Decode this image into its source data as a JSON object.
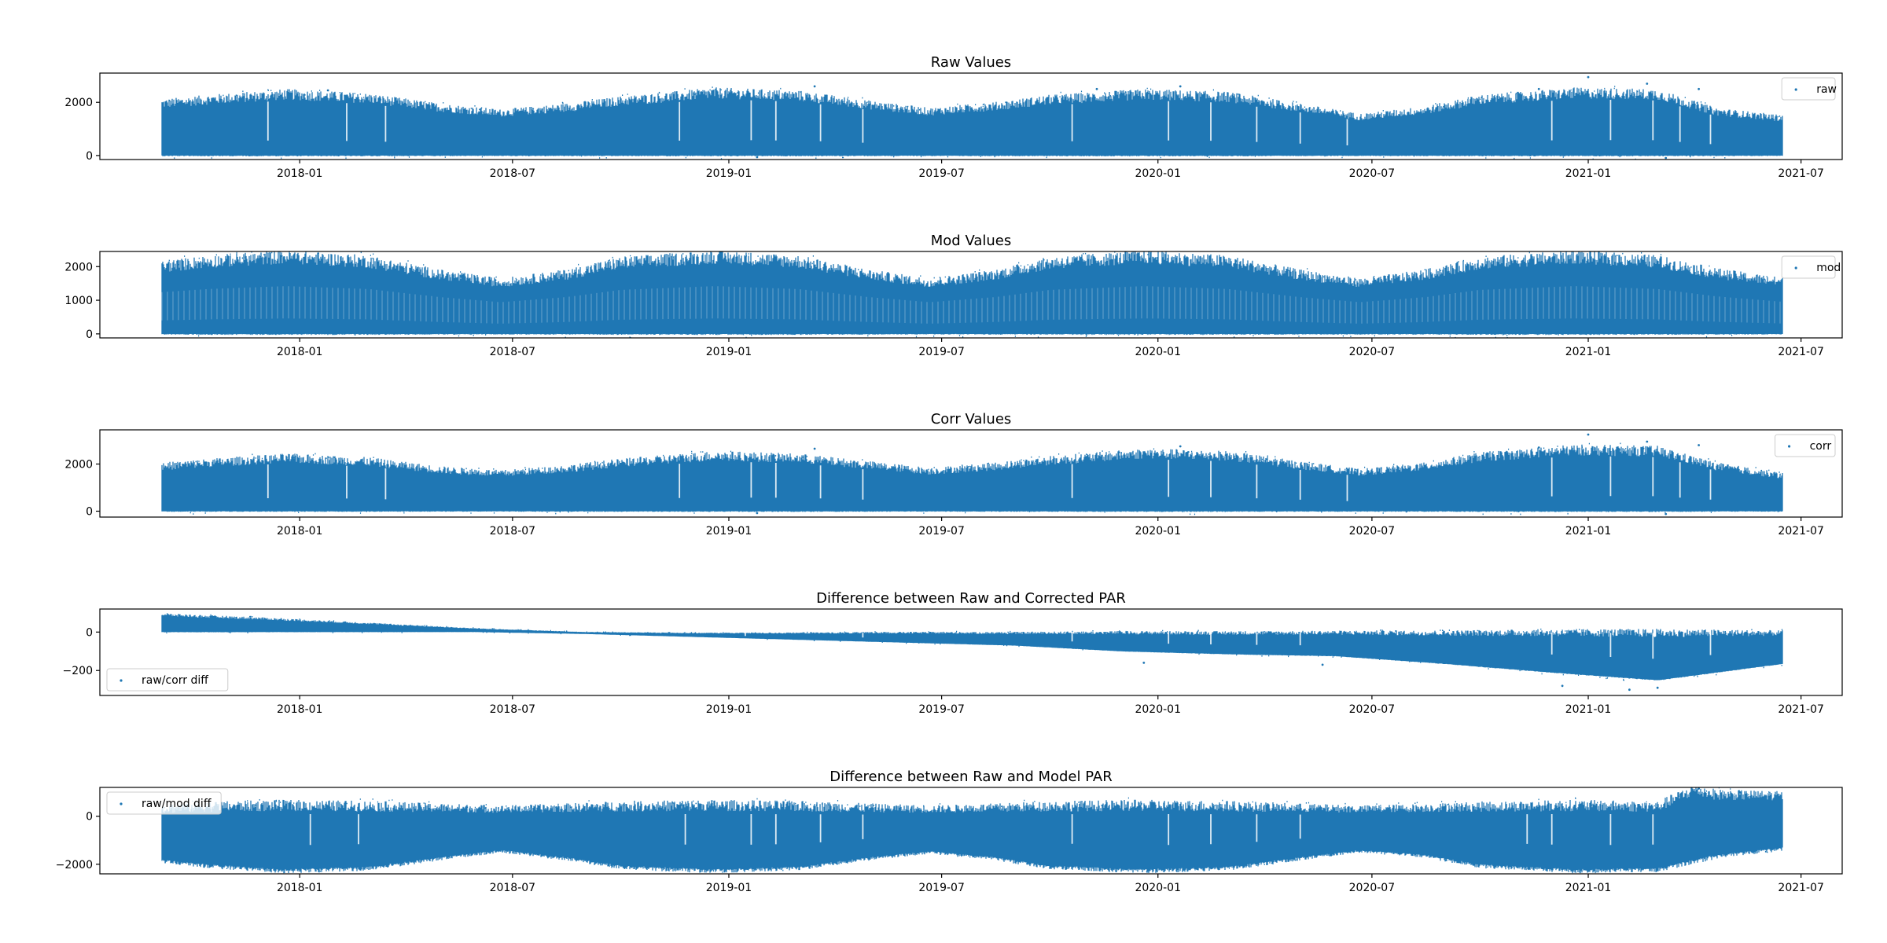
{
  "figure": {
    "background": "#ffffff",
    "series_color": "#1f77b4"
  },
  "chart_data": [
    {
      "type": "scatter",
      "title": "Raw Values",
      "legend": {
        "label": "raw",
        "location": "upper right"
      },
      "x_ticks": [
        "2018-01",
        "2018-07",
        "2019-01",
        "2019-07",
        "2020-01",
        "2020-07",
        "2021-01",
        "2021-07"
      ],
      "xlim": [
        "2017-07-15",
        "2021-08-05"
      ],
      "y_ticks": [
        0,
        2000
      ],
      "ylim": [
        -150,
        3100
      ],
      "x_range": [
        "2017-09-06",
        "2021-06-15"
      ],
      "envelope": {
        "dates": [
          "2017-09-06",
          "2017-10-15",
          "2017-12-21",
          "2018-03-01",
          "2018-05-01",
          "2018-06-21",
          "2018-08-15",
          "2018-10-01",
          "2018-12-21",
          "2019-03-01",
          "2019-05-01",
          "2019-06-21",
          "2019-08-15",
          "2019-10-01",
          "2019-12-21",
          "2020-03-01",
          "2020-05-01",
          "2020-06-21",
          "2020-08-15",
          "2020-10-01",
          "2020-12-21",
          "2021-03-01",
          "2021-04-20",
          "2021-06-15"
        ],
        "upper": [
          1950,
          2100,
          2300,
          2150,
          1800,
          1600,
          1800,
          2050,
          2350,
          2250,
          1900,
          1650,
          1850,
          2100,
          2300,
          2200,
          1800,
          1450,
          1700,
          2100,
          2350,
          2300,
          1650,
          1400
        ],
        "lower": [
          0,
          0,
          0,
          0,
          0,
          0,
          0,
          0,
          0,
          0,
          0,
          0,
          0,
          0,
          0,
          0,
          0,
          0,
          0,
          0,
          0,
          0,
          0,
          0
        ]
      },
      "outliers_high": [
        [
          "2021-01-01",
          2950
        ],
        [
          "2021-02-20",
          2700
        ],
        [
          "2019-03-15",
          2600
        ],
        [
          "2018-01-25",
          2450
        ],
        [
          "2019-11-10",
          2500
        ],
        [
          "2020-01-20",
          2600
        ],
        [
          "2020-11-20",
          2500
        ],
        [
          "2021-04-05",
          2500
        ]
      ],
      "outliers_low": [
        [
          "2021-03-08",
          -90
        ],
        [
          "2019-01-25",
          -60
        ]
      ],
      "dropouts": [
        "2017-12-05",
        "2018-02-10",
        "2018-03-15",
        "2018-11-20",
        "2019-01-20",
        "2019-02-10",
        "2019-03-20",
        "2019-04-25",
        "2019-10-20",
        "2020-01-10",
        "2020-02-15",
        "2020-03-25",
        "2020-05-01",
        "2020-06-10",
        "2020-12-01",
        "2021-01-20",
        "2021-02-25",
        "2021-03-20",
        "2021-04-15"
      ]
    },
    {
      "type": "scatter",
      "title": "Mod Values",
      "legend": {
        "label": "mod",
        "location": "upper right"
      },
      "x_ticks": [
        "2018-01",
        "2018-07",
        "2019-01",
        "2019-07",
        "2020-01",
        "2020-07",
        "2021-01",
        "2021-07"
      ],
      "xlim": [
        "2017-07-15",
        "2021-08-05"
      ],
      "y_ticks": [
        0,
        1000,
        2000
      ],
      "ylim": [
        -120,
        2450
      ],
      "x_range": [
        "2017-09-06",
        "2021-06-15"
      ],
      "envelope": {
        "dates": [
          "2017-09-06",
          "2017-10-15",
          "2017-12-21",
          "2018-03-01",
          "2018-05-01",
          "2018-06-21",
          "2018-08-15",
          "2018-10-01",
          "2018-12-21",
          "2019-03-01",
          "2019-05-01",
          "2019-06-21",
          "2019-08-15",
          "2019-10-01",
          "2019-12-21",
          "2020-03-01",
          "2020-05-01",
          "2020-06-21",
          "2020-08-15",
          "2020-10-01",
          "2020-12-21",
          "2021-03-01",
          "2021-04-20",
          "2021-06-15"
        ],
        "upper": [
          2000,
          2150,
          2290,
          2150,
          1760,
          1520,
          1760,
          2110,
          2290,
          2150,
          1760,
          1520,
          1760,
          2110,
          2290,
          2150,
          1760,
          1520,
          1760,
          2110,
          2290,
          2150,
          1800,
          1540
        ],
        "lower": [
          0,
          0,
          0,
          0,
          0,
          0,
          0,
          0,
          0,
          0,
          0,
          0,
          0,
          0,
          0,
          0,
          0,
          0,
          0,
          0,
          0,
          0,
          0,
          0
        ]
      },
      "outliers_high": [],
      "outliers_low": [],
      "dropouts": []
    },
    {
      "type": "scatter",
      "title": "Corr Values",
      "legend": {
        "label": "corr",
        "location": "upper right"
      },
      "x_ticks": [
        "2018-01",
        "2018-07",
        "2019-01",
        "2019-07",
        "2020-01",
        "2020-07",
        "2021-01",
        "2021-07"
      ],
      "xlim": [
        "2017-07-15",
        "2021-08-05"
      ],
      "y_ticks": [
        0,
        2000
      ],
      "ylim": [
        -250,
        3450
      ],
      "x_range": [
        "2017-09-06",
        "2021-06-15"
      ],
      "envelope": {
        "dates": [
          "2017-09-06",
          "2017-10-15",
          "2017-12-21",
          "2018-03-01",
          "2018-05-01",
          "2018-06-21",
          "2018-08-15",
          "2018-10-01",
          "2018-12-21",
          "2019-03-01",
          "2019-05-01",
          "2019-06-21",
          "2019-08-15",
          "2019-10-01",
          "2019-12-21",
          "2020-03-01",
          "2020-05-01",
          "2020-06-21",
          "2020-08-15",
          "2020-10-01",
          "2020-12-21",
          "2021-03-01",
          "2021-04-20",
          "2021-06-15"
        ],
        "upper": [
          1900,
          2050,
          2250,
          2100,
          1750,
          1600,
          1800,
          2050,
          2350,
          2250,
          1950,
          1700,
          1900,
          2150,
          2450,
          2350,
          1950,
          1650,
          1900,
          2300,
          2600,
          2550,
          1900,
          1500
        ],
        "lower": [
          0,
          0,
          0,
          0,
          0,
          0,
          0,
          0,
          0,
          0,
          0,
          0,
          0,
          0,
          0,
          0,
          0,
          0,
          0,
          0,
          0,
          0,
          0,
          0
        ]
      },
      "outliers_high": [
        [
          "2021-01-01",
          3250
        ],
        [
          "2021-02-20",
          2950
        ],
        [
          "2019-03-15",
          2650
        ],
        [
          "2020-01-20",
          2750
        ],
        [
          "2020-11-20",
          2700
        ],
        [
          "2021-04-05",
          2800
        ]
      ],
      "outliers_low": [
        [
          "2021-03-08",
          -120
        ],
        [
          "2019-01-25",
          -80
        ]
      ],
      "dropouts": [
        "2017-12-05",
        "2018-02-10",
        "2018-03-15",
        "2018-11-20",
        "2019-01-20",
        "2019-02-10",
        "2019-03-20",
        "2019-04-25",
        "2019-10-20",
        "2020-01-10",
        "2020-02-15",
        "2020-03-25",
        "2020-05-01",
        "2020-06-10",
        "2020-12-01",
        "2021-01-20",
        "2021-02-25",
        "2021-03-20",
        "2021-04-15"
      ]
    },
    {
      "type": "scatter",
      "title": "Difference between Raw and Corrected PAR",
      "legend": {
        "label": "raw/corr diff",
        "location": "lower left"
      },
      "x_ticks": [
        "2018-01",
        "2018-07",
        "2019-01",
        "2019-07",
        "2020-01",
        "2020-07",
        "2021-01",
        "2021-07"
      ],
      "xlim": [
        "2017-07-15",
        "2021-08-05"
      ],
      "y_ticks": [
        -200,
        0
      ],
      "ylim": [
        -330,
        120
      ],
      "x_range": [
        "2017-09-06",
        "2021-06-15"
      ],
      "envelope": {
        "dates": [
          "2017-09-06",
          "2017-12-01",
          "2018-03-01",
          "2018-06-01",
          "2018-09-01",
          "2018-12-01",
          "2019-03-01",
          "2019-06-01",
          "2019-09-01",
          "2019-12-01",
          "2020-03-01",
          "2020-06-01",
          "2020-09-01",
          "2020-12-01",
          "2021-03-01",
          "2021-06-15"
        ],
        "upper": [
          90,
          70,
          45,
          18,
          0,
          -5,
          -5,
          -3,
          -5,
          -3,
          -5,
          -3,
          -5,
          -3,
          -5,
          -5
        ],
        "lower": [
          0,
          0,
          0,
          0,
          -10,
          -25,
          -40,
          -55,
          -70,
          -100,
          -115,
          -125,
          -165,
          -210,
          -250,
          -165
        ]
      },
      "outliers_high": [],
      "outliers_low": [
        [
          "2020-12-10",
          -280
        ],
        [
          "2021-02-05",
          -300
        ],
        [
          "2021-03-01",
          -290
        ],
        [
          "2019-12-20",
          -160
        ],
        [
          "2020-05-20",
          -170
        ]
      ],
      "dropouts": [
        "2019-01-15",
        "2019-04-25",
        "2019-10-20",
        "2020-01-10",
        "2020-02-15",
        "2020-03-25",
        "2020-05-01",
        "2020-12-01",
        "2021-01-20",
        "2021-02-25",
        "2021-04-15"
      ]
    },
    {
      "type": "scatter",
      "title": "Difference between Raw and Model PAR",
      "legend": {
        "label": "raw/mod diff",
        "location": "upper left"
      },
      "x_ticks": [
        "2018-01",
        "2018-07",
        "2019-01",
        "2019-07",
        "2020-01",
        "2020-07",
        "2021-01",
        "2021-07"
      ],
      "xlim": [
        "2017-07-15",
        "2021-08-05"
      ],
      "y_ticks": [
        -2000,
        0
      ],
      "ylim": [
        -2400,
        1200
      ],
      "x_range": [
        "2017-09-06",
        "2021-06-15"
      ],
      "envelope": {
        "dates": [
          "2017-09-06",
          "2017-10-15",
          "2017-12-21",
          "2018-03-01",
          "2018-05-01",
          "2018-06-21",
          "2018-08-15",
          "2018-10-01",
          "2018-12-21",
          "2019-03-01",
          "2019-05-01",
          "2019-06-21",
          "2019-08-15",
          "2019-10-01",
          "2019-12-21",
          "2020-03-01",
          "2020-05-01",
          "2020-06-21",
          "2020-08-15",
          "2020-10-01",
          "2020-12-21",
          "2021-03-01",
          "2021-04-01",
          "2021-04-20",
          "2021-06-15"
        ],
        "upper": [
          300,
          400,
          450,
          420,
          350,
          300,
          350,
          420,
          450,
          420,
          350,
          300,
          350,
          420,
          450,
          420,
          350,
          300,
          350,
          400,
          450,
          400,
          1100,
          900,
          850
        ],
        "lower": [
          -1800,
          -2000,
          -2200,
          -2100,
          -1700,
          -1400,
          -1700,
          -2050,
          -2200,
          -2100,
          -1700,
          -1450,
          -1700,
          -2050,
          -2200,
          -2100,
          -1700,
          -1400,
          -1600,
          -2000,
          -2200,
          -2150,
          -1800,
          -1600,
          -1300
        ]
      },
      "outliers_high": [
        [
          "2021-04-05",
          1150
        ],
        [
          "2021-05-10",
          1000
        ]
      ],
      "outliers_low": [],
      "dropouts": [
        "2018-01-10",
        "2018-02-20",
        "2018-11-25",
        "2019-01-20",
        "2019-02-10",
        "2019-03-20",
        "2019-04-25",
        "2019-10-20",
        "2020-01-10",
        "2020-02-15",
        "2020-03-25",
        "2020-05-01",
        "2020-11-10",
        "2020-12-01",
        "2021-01-20",
        "2021-02-25"
      ]
    }
  ]
}
